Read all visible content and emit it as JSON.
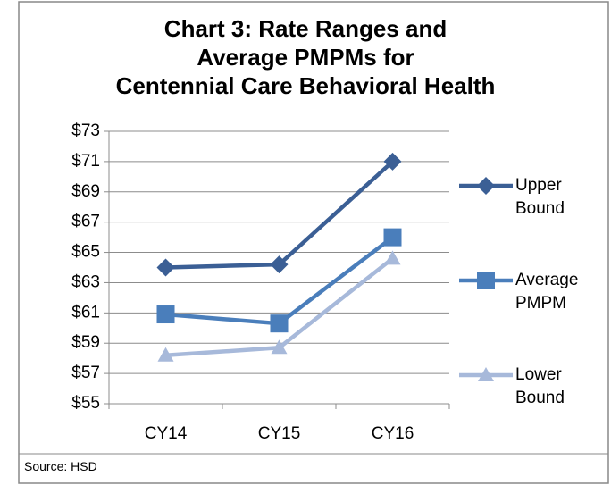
{
  "chart_data": {
    "type": "line",
    "title": [
      "Chart 3: Rate Ranges and",
      "Average PMPMs for",
      "Centennial Care Behavioral Health"
    ],
    "categories": [
      "CY14",
      "CY15",
      "CY16"
    ],
    "series": [
      {
        "name": "Upper Bound",
        "color": "#3b5f95",
        "marker": "diamond",
        "values": [
          64.0,
          64.2,
          71.0
        ]
      },
      {
        "name": "Average PMPM",
        "color": "#4a7ebb",
        "marker": "square",
        "values": [
          60.9,
          60.3,
          66.0
        ]
      },
      {
        "name": "Lower Bound",
        "color": "#a7b9da",
        "marker": "triangle",
        "values": [
          58.2,
          58.7,
          64.6
        ]
      }
    ],
    "ylim": [
      55,
      73
    ],
    "yticks": [
      {
        "value": 55,
        "label": "$55"
      },
      {
        "value": 57,
        "label": "$57"
      },
      {
        "value": 59,
        "label": "$59"
      },
      {
        "value": 61,
        "label": "$61"
      },
      {
        "value": 63,
        "label": "$63"
      },
      {
        "value": 65,
        "label": "$65"
      },
      {
        "value": 67,
        "label": "$67"
      },
      {
        "value": 69,
        "label": "$69"
      },
      {
        "value": 71,
        "label": "$71"
      },
      {
        "value": 73,
        "label": "$73"
      }
    ],
    "grid": true,
    "legend": "right",
    "source": "Source: HSD"
  }
}
